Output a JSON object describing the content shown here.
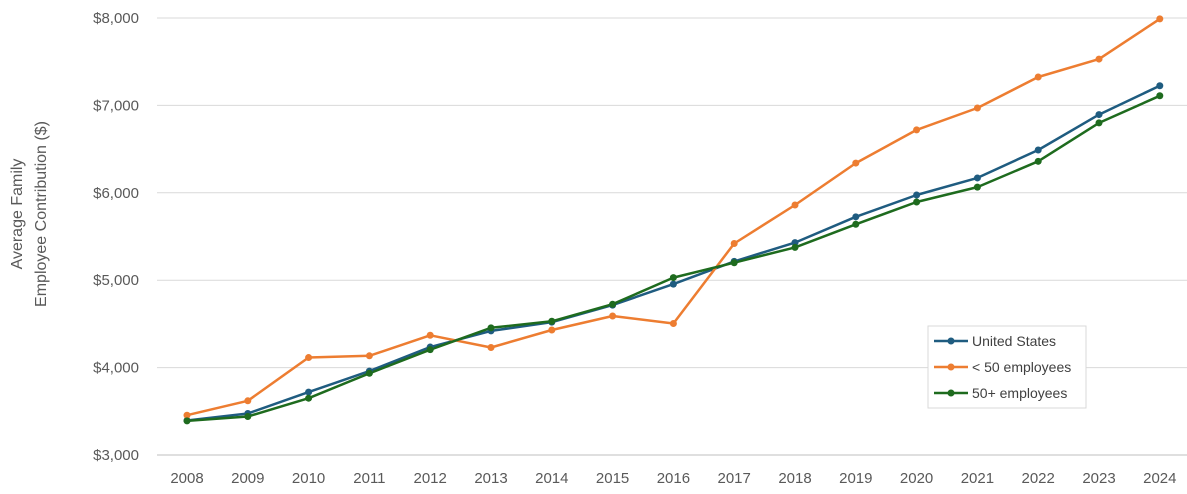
{
  "chart_data": {
    "type": "line",
    "title": "",
    "xlabel": "",
    "ylabel_lines": [
      "Average Family",
      "Employee Contribution ($)"
    ],
    "x": [
      "2008",
      "2009",
      "2010",
      "2011",
      "2012",
      "2013",
      "2014",
      "2015",
      "2016",
      "2017",
      "2018",
      "2019",
      "2020",
      "2021",
      "2022",
      "2023",
      "2024"
    ],
    "ylim": [
      3000,
      8000
    ],
    "yticks": [
      3000,
      4000,
      5000,
      6000,
      7000,
      8000
    ],
    "ytick_labels": [
      "$3,000",
      "$4,000",
      "$5,000",
      "$6,000",
      "$7,000",
      "$8,000"
    ],
    "grid": "horizontal",
    "legend_position": "bottom-right",
    "series": [
      {
        "name": "United States",
        "color": "#1f5c80",
        "values": [
          3395,
          3475,
          3720,
          3960,
          4235,
          4420,
          4520,
          4715,
          4955,
          5215,
          5430,
          5725,
          5975,
          6170,
          6490,
          6895,
          7225
        ]
      },
      {
        "name": "< 50 employees",
        "color": "#ed7d31",
        "values": [
          3455,
          3620,
          4115,
          4135,
          4370,
          4230,
          4430,
          4590,
          4505,
          5420,
          5860,
          6340,
          6720,
          6970,
          7325,
          7530,
          7990
        ]
      },
      {
        "name": "50+ employees",
        "color": "#1e6b1e",
        "values": [
          3390,
          3440,
          3650,
          3935,
          4205,
          4455,
          4530,
          4725,
          5030,
          5200,
          5375,
          5640,
          5895,
          6065,
          6360,
          6800,
          7110
        ]
      }
    ]
  }
}
